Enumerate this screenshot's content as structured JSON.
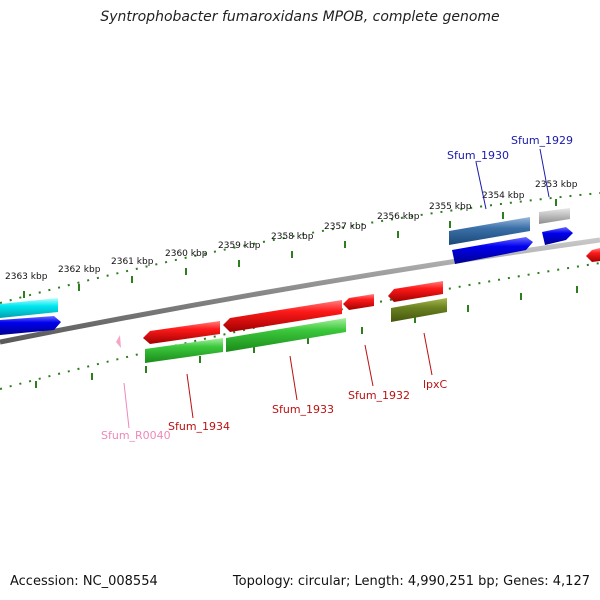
{
  "title": "Syntrophobacter fumaroxidans MPOB, complete genome",
  "footer": {
    "accession": "Accession: NC_008554",
    "topology": "Topology: circular; Length: 4,990,251 bp; Genes: 4,127"
  },
  "scale_labels": [
    "2363 kbp",
    "2362 kbp",
    "2361 kbp",
    "2360 kbp",
    "2359 kbp",
    "2358 kbp",
    "2357 kbp",
    "2356 kbp",
    "2355 kbp",
    "2354 kbp",
    "2353 kbp"
  ],
  "gene_labels": {
    "sfum_1930": "Sfum_1930",
    "sfum_1929": "Sfum_1929",
    "sfum_r0040": "Sfum_R0040",
    "sfum_1934": "Sfum_1934",
    "sfum_1933": "Sfum_1933",
    "sfum_1932": "Sfum_1932",
    "lpxc": "lpxC"
  },
  "colors": {
    "backbone": "#8a8a8a",
    "ruler": "#2e7d1f",
    "plus_label": "#1a1aaa",
    "minus_label": "#bb1111",
    "rna_label": "#ee88bb"
  }
}
